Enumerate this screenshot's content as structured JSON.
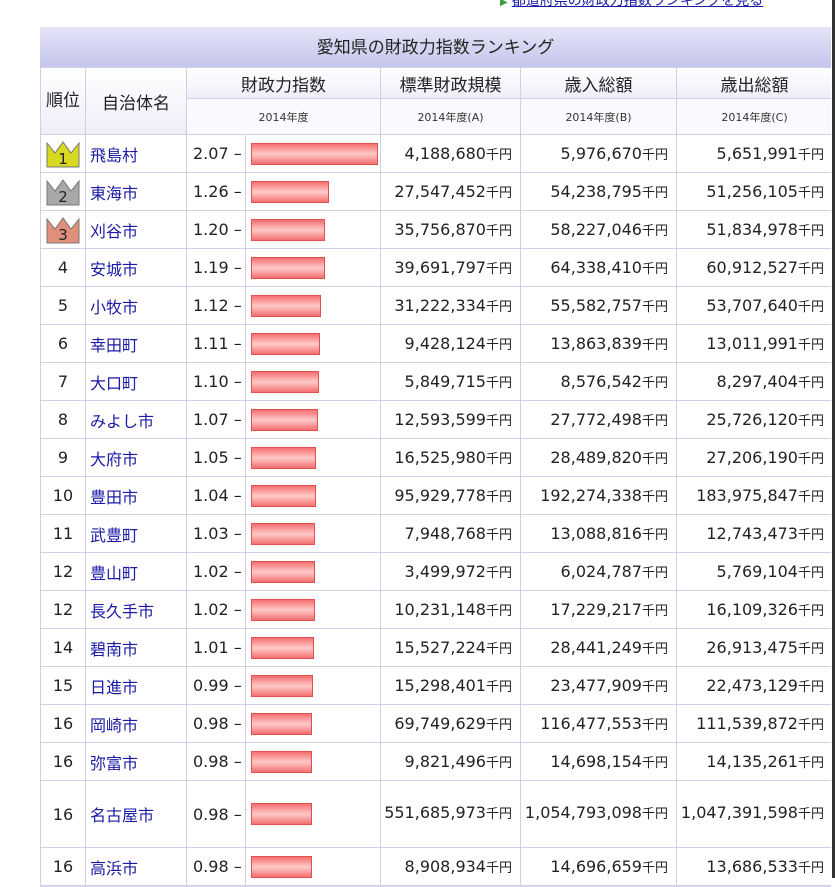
{
  "top_link": "都道府県の財政力指数ランキングを見る",
  "table_title": "愛知県の財政力指数ランキング",
  "headers": {
    "rank": "順位",
    "name": "自治体名",
    "index": "財政力指数",
    "scale": "標準財政規模",
    "revenue": "歳入総額",
    "expenditure": "歳出総額"
  },
  "subheaders": {
    "index": "2014年度",
    "scale": "2014年度(A)",
    "revenue": "2014年度(B)",
    "expenditure": "2014年度(C)"
  },
  "unit": "千円",
  "index_marker": "–",
  "colors": {
    "gold": "#d8d820",
    "silver": "#a8a8a8",
    "bronze": "#e0907a",
    "bar": "#f57070"
  },
  "rows": [
    {
      "rank": "1",
      "name": "飛島村",
      "index": 2.07,
      "index_label": "2.07",
      "scale": "4,188,680",
      "revenue": "5,976,670",
      "expenditure": "5,651,991"
    },
    {
      "rank": "2",
      "name": "東海市",
      "index": 1.26,
      "index_label": "1.26",
      "scale": "27,547,452",
      "revenue": "54,238,795",
      "expenditure": "51,256,105"
    },
    {
      "rank": "3",
      "name": "刈谷市",
      "index": 1.2,
      "index_label": "1.20",
      "scale": "35,756,870",
      "revenue": "58,227,046",
      "expenditure": "51,834,978"
    },
    {
      "rank": "4",
      "name": "安城市",
      "index": 1.19,
      "index_label": "1.19",
      "scale": "39,691,797",
      "revenue": "64,338,410",
      "expenditure": "60,912,527"
    },
    {
      "rank": "5",
      "name": "小牧市",
      "index": 1.12,
      "index_label": "1.12",
      "scale": "31,222,334",
      "revenue": "55,582,757",
      "expenditure": "53,707,640"
    },
    {
      "rank": "6",
      "name": "幸田町",
      "index": 1.11,
      "index_label": "1.11",
      "scale": "9,428,124",
      "revenue": "13,863,839",
      "expenditure": "13,011,991"
    },
    {
      "rank": "7",
      "name": "大口町",
      "index": 1.1,
      "index_label": "1.10",
      "scale": "5,849,715",
      "revenue": "8,576,542",
      "expenditure": "8,297,404"
    },
    {
      "rank": "8",
      "name": "みよし市",
      "index": 1.07,
      "index_label": "1.07",
      "scale": "12,593,599",
      "revenue": "27,772,498",
      "expenditure": "25,726,120"
    },
    {
      "rank": "9",
      "name": "大府市",
      "index": 1.05,
      "index_label": "1.05",
      "scale": "16,525,980",
      "revenue": "28,489,820",
      "expenditure": "27,206,190"
    },
    {
      "rank": "10",
      "name": "豊田市",
      "index": 1.04,
      "index_label": "1.04",
      "scale": "95,929,778",
      "revenue": "192,274,338",
      "expenditure": "183,975,847"
    },
    {
      "rank": "11",
      "name": "武豊町",
      "index": 1.03,
      "index_label": "1.03",
      "scale": "7,948,768",
      "revenue": "13,088,816",
      "expenditure": "12,743,473"
    },
    {
      "rank": "12",
      "name": "豊山町",
      "index": 1.02,
      "index_label": "1.02",
      "scale": "3,499,972",
      "revenue": "6,024,787",
      "expenditure": "5,769,104"
    },
    {
      "rank": "12",
      "name": "長久手市",
      "index": 1.02,
      "index_label": "1.02",
      "scale": "10,231,148",
      "revenue": "17,229,217",
      "expenditure": "16,109,326"
    },
    {
      "rank": "14",
      "name": "碧南市",
      "index": 1.01,
      "index_label": "1.01",
      "scale": "15,527,224",
      "revenue": "28,441,249",
      "expenditure": "26,913,475"
    },
    {
      "rank": "15",
      "name": "日進市",
      "index": 0.99,
      "index_label": "0.99",
      "scale": "15,298,401",
      "revenue": "23,477,909",
      "expenditure": "22,473,129"
    },
    {
      "rank": "16",
      "name": "岡崎市",
      "index": 0.98,
      "index_label": "0.98",
      "scale": "69,749,629",
      "revenue": "116,477,553",
      "expenditure": "111,539,872"
    },
    {
      "rank": "16",
      "name": "弥富市",
      "index": 0.98,
      "index_label": "0.98",
      "scale": "9,821,496",
      "revenue": "14,698,154",
      "expenditure": "14,135,261"
    },
    {
      "rank": "16",
      "name": "名古屋市",
      "index": 0.98,
      "index_label": "0.98",
      "scale": "551,685,973",
      "revenue": "1,054,793,098",
      "expenditure": "1,047,391,598"
    },
    {
      "rank": "16",
      "name": "高浜市",
      "index": 0.98,
      "index_label": "0.98",
      "scale": "8,908,934",
      "revenue": "14,696,659",
      "expenditure": "13,686,533"
    }
  ]
}
